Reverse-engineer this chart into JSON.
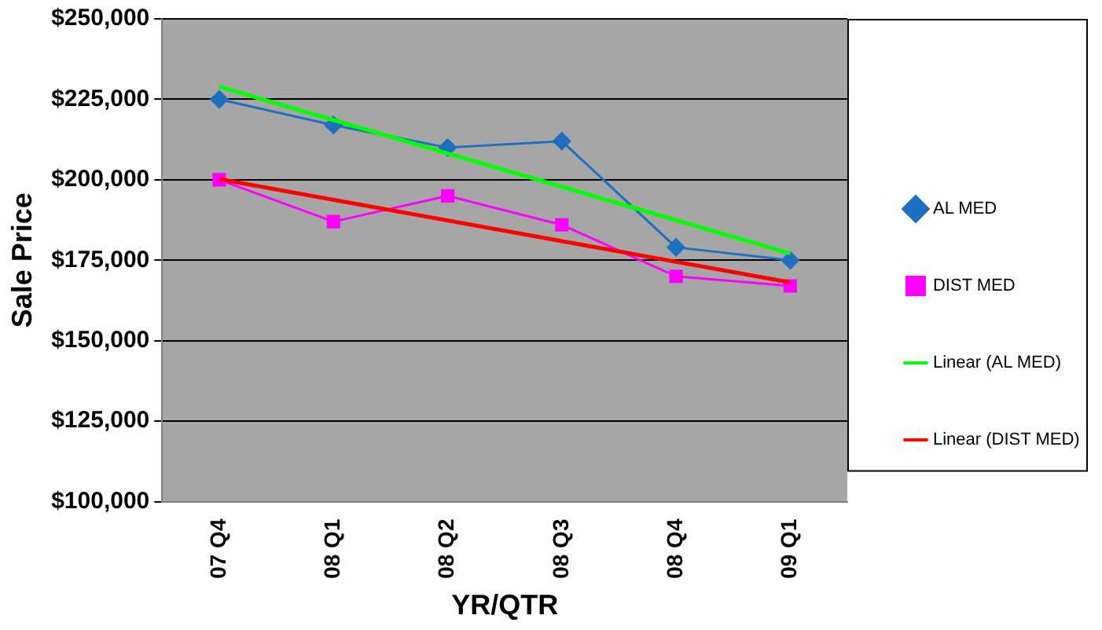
{
  "chart_data": {
    "type": "line",
    "xlabel": "YR/QTR",
    "ylabel": "Sale Price",
    "categories": [
      "07 Q4",
      "08 Q1",
      "08 Q2",
      "08 Q3",
      "08 Q4",
      "09 Q1"
    ],
    "series": [
      {
        "name": "AL MED",
        "color": "#1f6fc0",
        "marker": "diamond",
        "values": [
          225000,
          217000,
          210000,
          212000,
          179000,
          175000
        ]
      },
      {
        "name": "DIST MED",
        "color": "#ff00ff",
        "marker": "square",
        "values": [
          200000,
          187000,
          195000,
          186000,
          170000,
          167000
        ]
      },
      {
        "name": "Linear (AL MED)",
        "color": "#00ff00",
        "marker": "none",
        "x": [
          "07 Q4",
          "09 Q1"
        ],
        "values": [
          228900,
          177100
        ]
      },
      {
        "name": "Linear (DIST MED)",
        "color": "#ff0000",
        "marker": "none",
        "x": [
          "07 Q4",
          "09 Q1"
        ],
        "values": [
          200200,
          168100
        ]
      }
    ],
    "ylim": [
      100000,
      250000
    ],
    "yticks": [
      {
        "value": 100000,
        "label": "$100,000"
      },
      {
        "value": 125000,
        "label": "$125,000"
      },
      {
        "value": 150000,
        "label": "$150,000"
      },
      {
        "value": 175000,
        "label": "$175,000"
      },
      {
        "value": 200000,
        "label": "$200,000"
      },
      {
        "value": 225000,
        "label": "$225,000"
      },
      {
        "value": 250000,
        "label": "$250,000"
      }
    ],
    "grid": "y",
    "legend": "right"
  }
}
